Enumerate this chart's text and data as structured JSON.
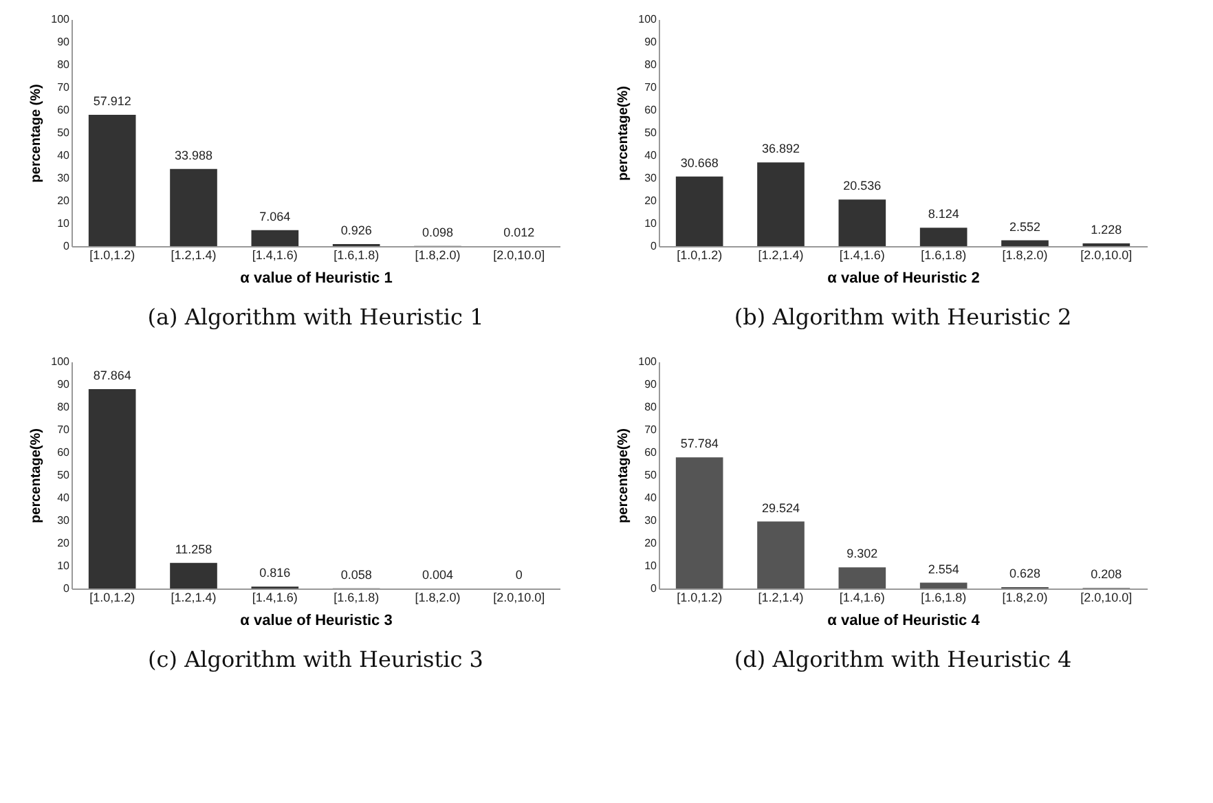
{
  "chart_data": [
    {
      "type": "bar",
      "title": "(a) Algorithm with Heuristic 1",
      "xlabel": "α  value of Heuristic 1",
      "ylabel": "percentage (%)",
      "categories": [
        "[1.0,1.2)",
        "[1.2,1.4)",
        "[1.4,1.6)",
        "[1.6,1.8)",
        "[1.8,2.0)",
        "[2.0,10.0]"
      ],
      "values": [
        57.912,
        33.988,
        7.064,
        0.926,
        0.098,
        0.012
      ],
      "color": "#333333",
      "ylim": [
        0,
        100
      ],
      "yticks": [
        0,
        10,
        20,
        30,
        40,
        50,
        60,
        70,
        80,
        90,
        100
      ],
      "data_labels": true
    },
    {
      "type": "bar",
      "title": "(b) Algorithm with Heuristic 2",
      "xlabel": "α  value of Heuristic 2",
      "ylabel": "percentage(%)",
      "categories": [
        "[1.0,1.2)",
        "[1.2,1.4)",
        "[1.4,1.6)",
        "[1.6,1.8)",
        "[1.8,2.0)",
        "[2.0,10.0]"
      ],
      "values": [
        30.668,
        36.892,
        20.536,
        8.124,
        2.552,
        1.228
      ],
      "color": "#333333",
      "ylim": [
        0,
        100
      ],
      "yticks": [
        0,
        10,
        20,
        30,
        40,
        50,
        60,
        70,
        80,
        90,
        100
      ],
      "data_labels": true
    },
    {
      "type": "bar",
      "title": "(c) Algorithm with Heuristic 3",
      "xlabel": "α  value of Heuristic 3",
      "ylabel": "percentage(%)",
      "categories": [
        "[1.0,1.2)",
        "[1.2,1.4)",
        "[1.4,1.6)",
        "[1.6,1.8)",
        "[1.8,2.0)",
        "[2.0,10.0]"
      ],
      "values": [
        87.864,
        11.258,
        0.816,
        0.058,
        0.004,
        0
      ],
      "color": "#333333",
      "ylim": [
        0,
        100
      ],
      "yticks": [
        0,
        10,
        20,
        30,
        40,
        50,
        60,
        70,
        80,
        90,
        100
      ],
      "data_labels": true
    },
    {
      "type": "bar",
      "title": "(d) Algorithm with Heuristic 4",
      "xlabel": "α  value of Heuristic 4",
      "ylabel": "percentage(%)",
      "categories": [
        "[1.0,1.2)",
        "[1.2,1.4)",
        "[1.4,1.6)",
        "[1.6,1.8)",
        "[1.8,2.0)",
        "[2.0,10.0]"
      ],
      "values": [
        57.784,
        29.524,
        9.302,
        2.554,
        0.628,
        0.208
      ],
      "color": "#555555",
      "ylim": [
        0,
        100
      ],
      "yticks": [
        0,
        10,
        20,
        30,
        40,
        50,
        60,
        70,
        80,
        90,
        100
      ],
      "data_labels": true
    }
  ]
}
